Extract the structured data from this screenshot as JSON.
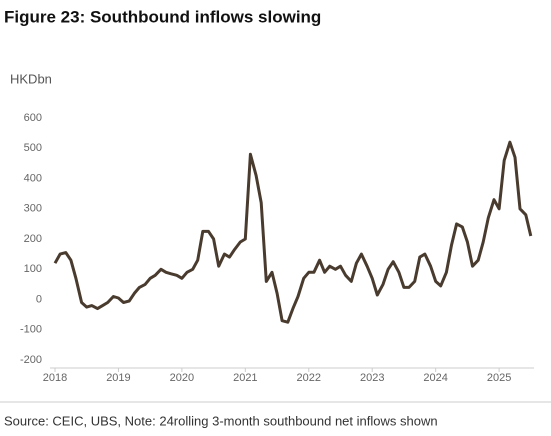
{
  "chart_data": {
    "type": "line",
    "title": "Figure 23: Southbound inflows slowing",
    "y_label": "HKDbn",
    "source": "Source: CEIC, UBS, Note: 24rolling 3-month southbound net inflows shown",
    "xlim": [
      2018,
      2025.55
    ],
    "xticks": [
      2018,
      2019,
      2020,
      2021,
      2022,
      2023,
      2024,
      2025
    ],
    "ylim": [
      -200,
      600
    ],
    "yticks": [
      -200,
      -100,
      0,
      100,
      200,
      300,
      400,
      500,
      600
    ],
    "x": [
      2018.0,
      2018.08,
      2018.17,
      2018.25,
      2018.33,
      2018.42,
      2018.5,
      2018.58,
      2018.67,
      2018.75,
      2018.83,
      2018.92,
      2019.0,
      2019.08,
      2019.17,
      2019.25,
      2019.33,
      2019.42,
      2019.5,
      2019.58,
      2019.67,
      2019.75,
      2019.83,
      2019.92,
      2020.0,
      2020.08,
      2020.17,
      2020.25,
      2020.33,
      2020.42,
      2020.5,
      2020.58,
      2020.67,
      2020.75,
      2020.83,
      2020.92,
      2021.0,
      2021.08,
      2021.17,
      2021.25,
      2021.33,
      2021.42,
      2021.5,
      2021.58,
      2021.67,
      2021.75,
      2021.83,
      2021.92,
      2022.0,
      2022.08,
      2022.17,
      2022.25,
      2022.33,
      2022.42,
      2022.5,
      2022.58,
      2022.67,
      2022.75,
      2022.83,
      2022.92,
      2023.0,
      2023.08,
      2023.17,
      2023.25,
      2023.33,
      2023.42,
      2023.5,
      2023.58,
      2023.67,
      2023.75,
      2023.83,
      2023.92,
      2024.0,
      2024.08,
      2024.17,
      2024.25,
      2024.33,
      2024.42,
      2024.5,
      2024.58,
      2024.67,
      2024.75,
      2024.83,
      2024.92,
      2025.0,
      2025.08,
      2025.17,
      2025.25,
      2025.33,
      2025.42,
      2025.5
    ],
    "series": [
      {
        "color": "#4a3b2f",
        "values": [
          120,
          150,
          155,
          130,
          70,
          -10,
          -25,
          -20,
          -30,
          -20,
          -10,
          10,
          5,
          -10,
          -5,
          20,
          40,
          50,
          70,
          80,
          100,
          90,
          85,
          80,
          70,
          90,
          100,
          130,
          225,
          225,
          200,
          110,
          150,
          140,
          165,
          190,
          200,
          480,
          410,
          320,
          60,
          90,
          20,
          -70,
          -75,
          -30,
          10,
          70,
          90,
          90,
          130,
          90,
          110,
          100,
          110,
          80,
          60,
          120,
          150,
          110,
          70,
          15,
          50,
          100,
          125,
          90,
          40,
          40,
          60,
          140,
          150,
          110,
          60,
          45,
          90,
          180,
          250,
          240,
          190,
          110,
          130,
          190,
          270,
          330,
          300,
          460,
          520,
          470,
          300,
          280,
          210
        ]
      }
    ]
  }
}
